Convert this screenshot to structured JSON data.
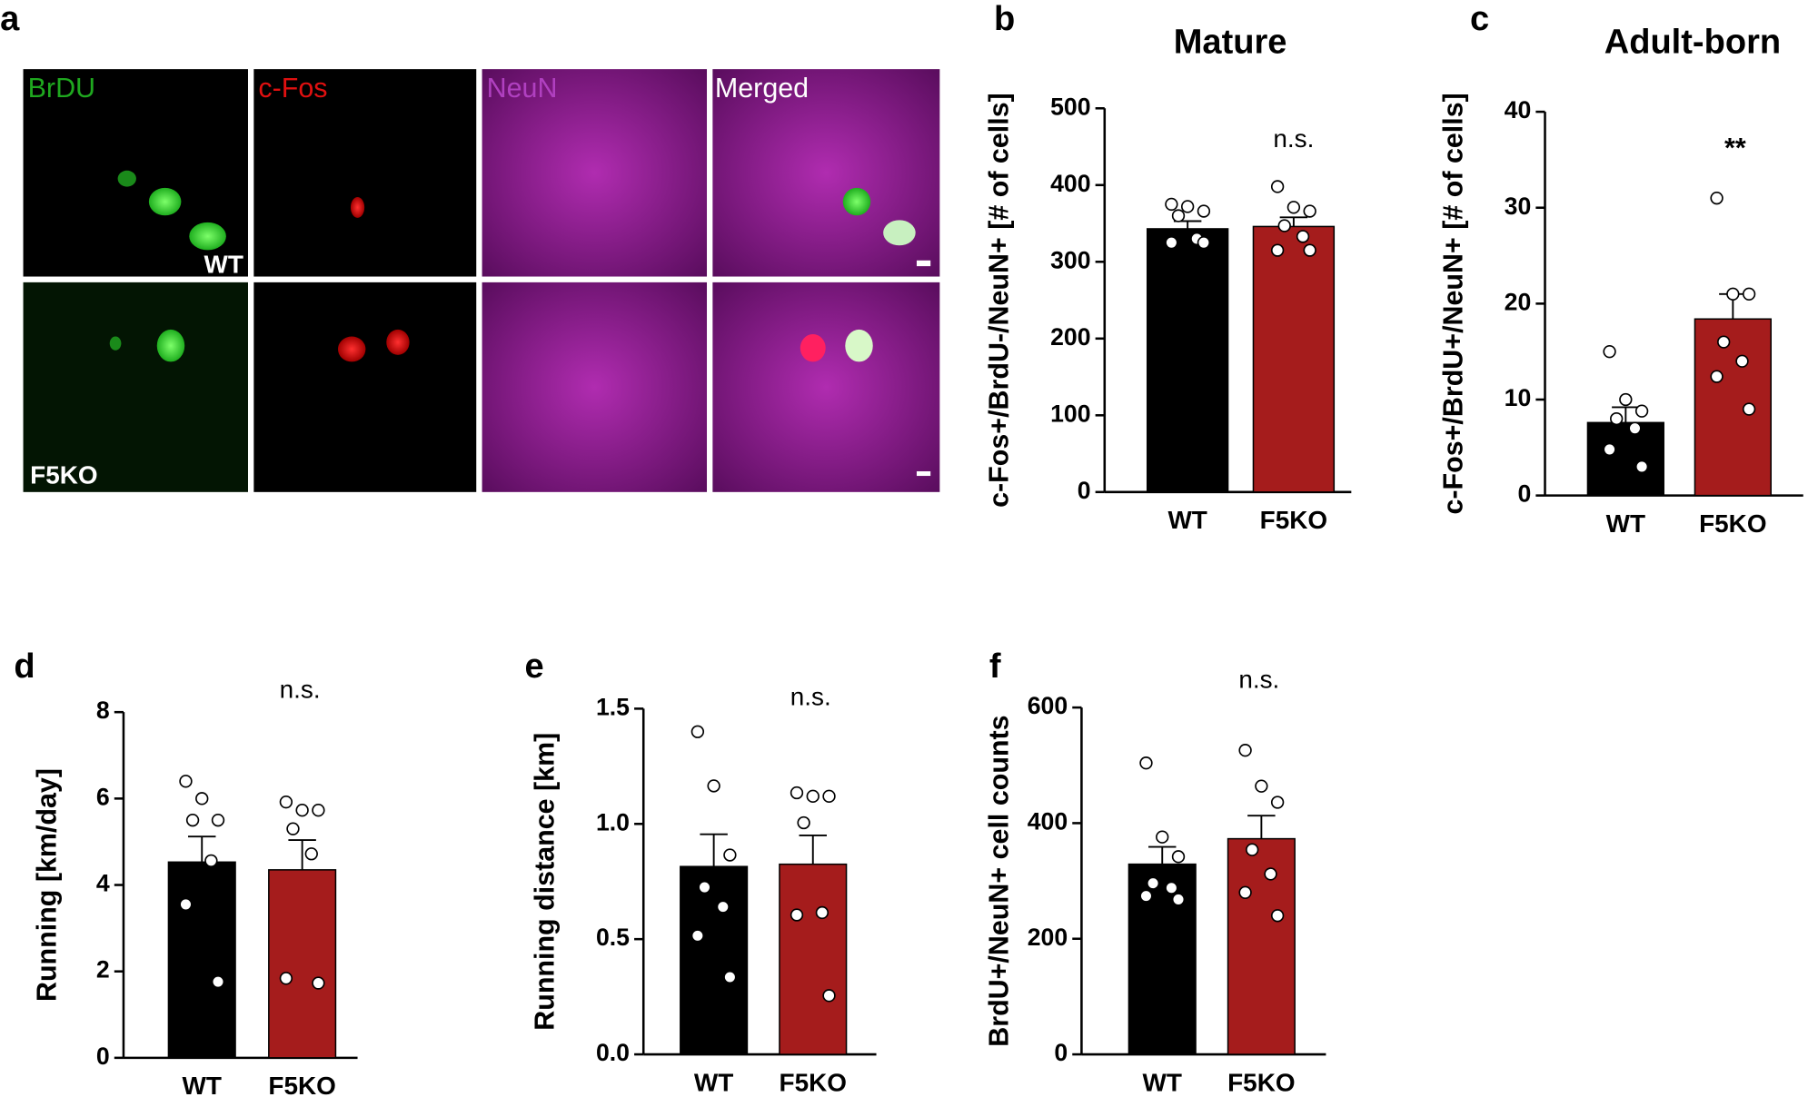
{
  "panel_a": {
    "label": "a",
    "channels": [
      "BrDU",
      "c-Fos",
      "NeuN",
      "Merged"
    ],
    "rows": [
      "WT",
      "F5KO"
    ]
  },
  "chart_data": [
    {
      "type": "bar",
      "panel": "b",
      "title": "Mature",
      "ylabel": "c-Fos+/BrdU-/NeuN+ [# of cells]",
      "categories": [
        "WT",
        "F5KO"
      ],
      "values": [
        343,
        346
      ],
      "errors": [
        10,
        12
      ],
      "colors": [
        "#000000",
        "#a51c1c"
      ],
      "points": [
        [
          375,
          372,
          366,
          360,
          330,
          325,
          325
        ],
        [
          398,
          371,
          366,
          347,
          333,
          315,
          315
        ]
      ],
      "annotation": "n.s.",
      "ylim": [
        0,
        500
      ],
      "yticks": [
        0,
        100,
        200,
        300,
        400,
        500
      ]
    },
    {
      "type": "bar",
      "panel": "c",
      "title": "Adult-born",
      "ylabel": "c-Fos+/BrdU+/NeuN+ [# of cells]",
      "categories": [
        "WT",
        "F5KO"
      ],
      "values": [
        7.6,
        18.4
      ],
      "errors": [
        1.6,
        2.6
      ],
      "colors": [
        "#000000",
        "#a51c1c"
      ],
      "points": [
        [
          15,
          10,
          8.8,
          8,
          7,
          4.8,
          3
        ],
        [
          31,
          21,
          21,
          16,
          14,
          12.4,
          9
        ]
      ],
      "annotation": "**",
      "ylim": [
        0,
        40
      ],
      "yticks": [
        0,
        10,
        20,
        30,
        40
      ]
    },
    {
      "type": "bar",
      "panel": "d",
      "ylabel": "Running [km/day]",
      "categories": [
        "WT",
        "F5KO"
      ],
      "values": [
        4.53,
        4.35
      ],
      "errors": [
        0.59,
        0.69
      ],
      "colors": [
        "#000000",
        "#a51c1c"
      ],
      "points": [
        [
          6.4,
          6.0,
          5.5,
          5.5,
          4.56,
          3.55,
          1.76
        ],
        [
          5.92,
          5.73,
          5.73,
          5.3,
          4.72,
          1.84,
          1.73
        ]
      ],
      "annotation": "n.s.",
      "ylim": [
        0,
        8
      ],
      "yticks": [
        0,
        2,
        4,
        6,
        8
      ]
    },
    {
      "type": "bar",
      "panel": "e",
      "ylabel": "Running distance [km]",
      "categories": [
        "WT",
        "F5KO"
      ],
      "values": [
        0.815,
        0.825
      ],
      "errors": [
        0.14,
        0.125
      ],
      "colors": [
        "#000000",
        "#a51c1c"
      ],
      "points": [
        [
          1.4,
          1.165,
          0.865,
          0.725,
          0.64,
          0.515,
          0.335
        ],
        [
          1.135,
          1.12,
          1.12,
          1.005,
          0.615,
          0.605,
          0.255
        ]
      ],
      "annotation": "n.s.",
      "ylim": [
        0,
        1.5
      ],
      "yticks": [
        {
          "value": 0,
          "label": "0.0"
        },
        0.5,
        {
          "value": 1,
          "label": "1.0"
        },
        1.5
      ]
    },
    {
      "type": "bar",
      "panel": "f",
      "ylabel": "BrdU+/NeuN+ cell counts",
      "categories": [
        "WT",
        "F5KO"
      ],
      "values": [
        329,
        373
      ],
      "errors": [
        30,
        40
      ],
      "colors": [
        "#000000",
        "#a51c1c"
      ],
      "points": [
        [
          504,
          376,
          342,
          296,
          288,
          274,
          268
        ],
        [
          526,
          464,
          436,
          354,
          312,
          280,
          240
        ]
      ],
      "annotation": "n.s.",
      "ylim": [
        0,
        600
      ],
      "yticks": [
        0,
        200,
        400,
        600
      ]
    }
  ]
}
